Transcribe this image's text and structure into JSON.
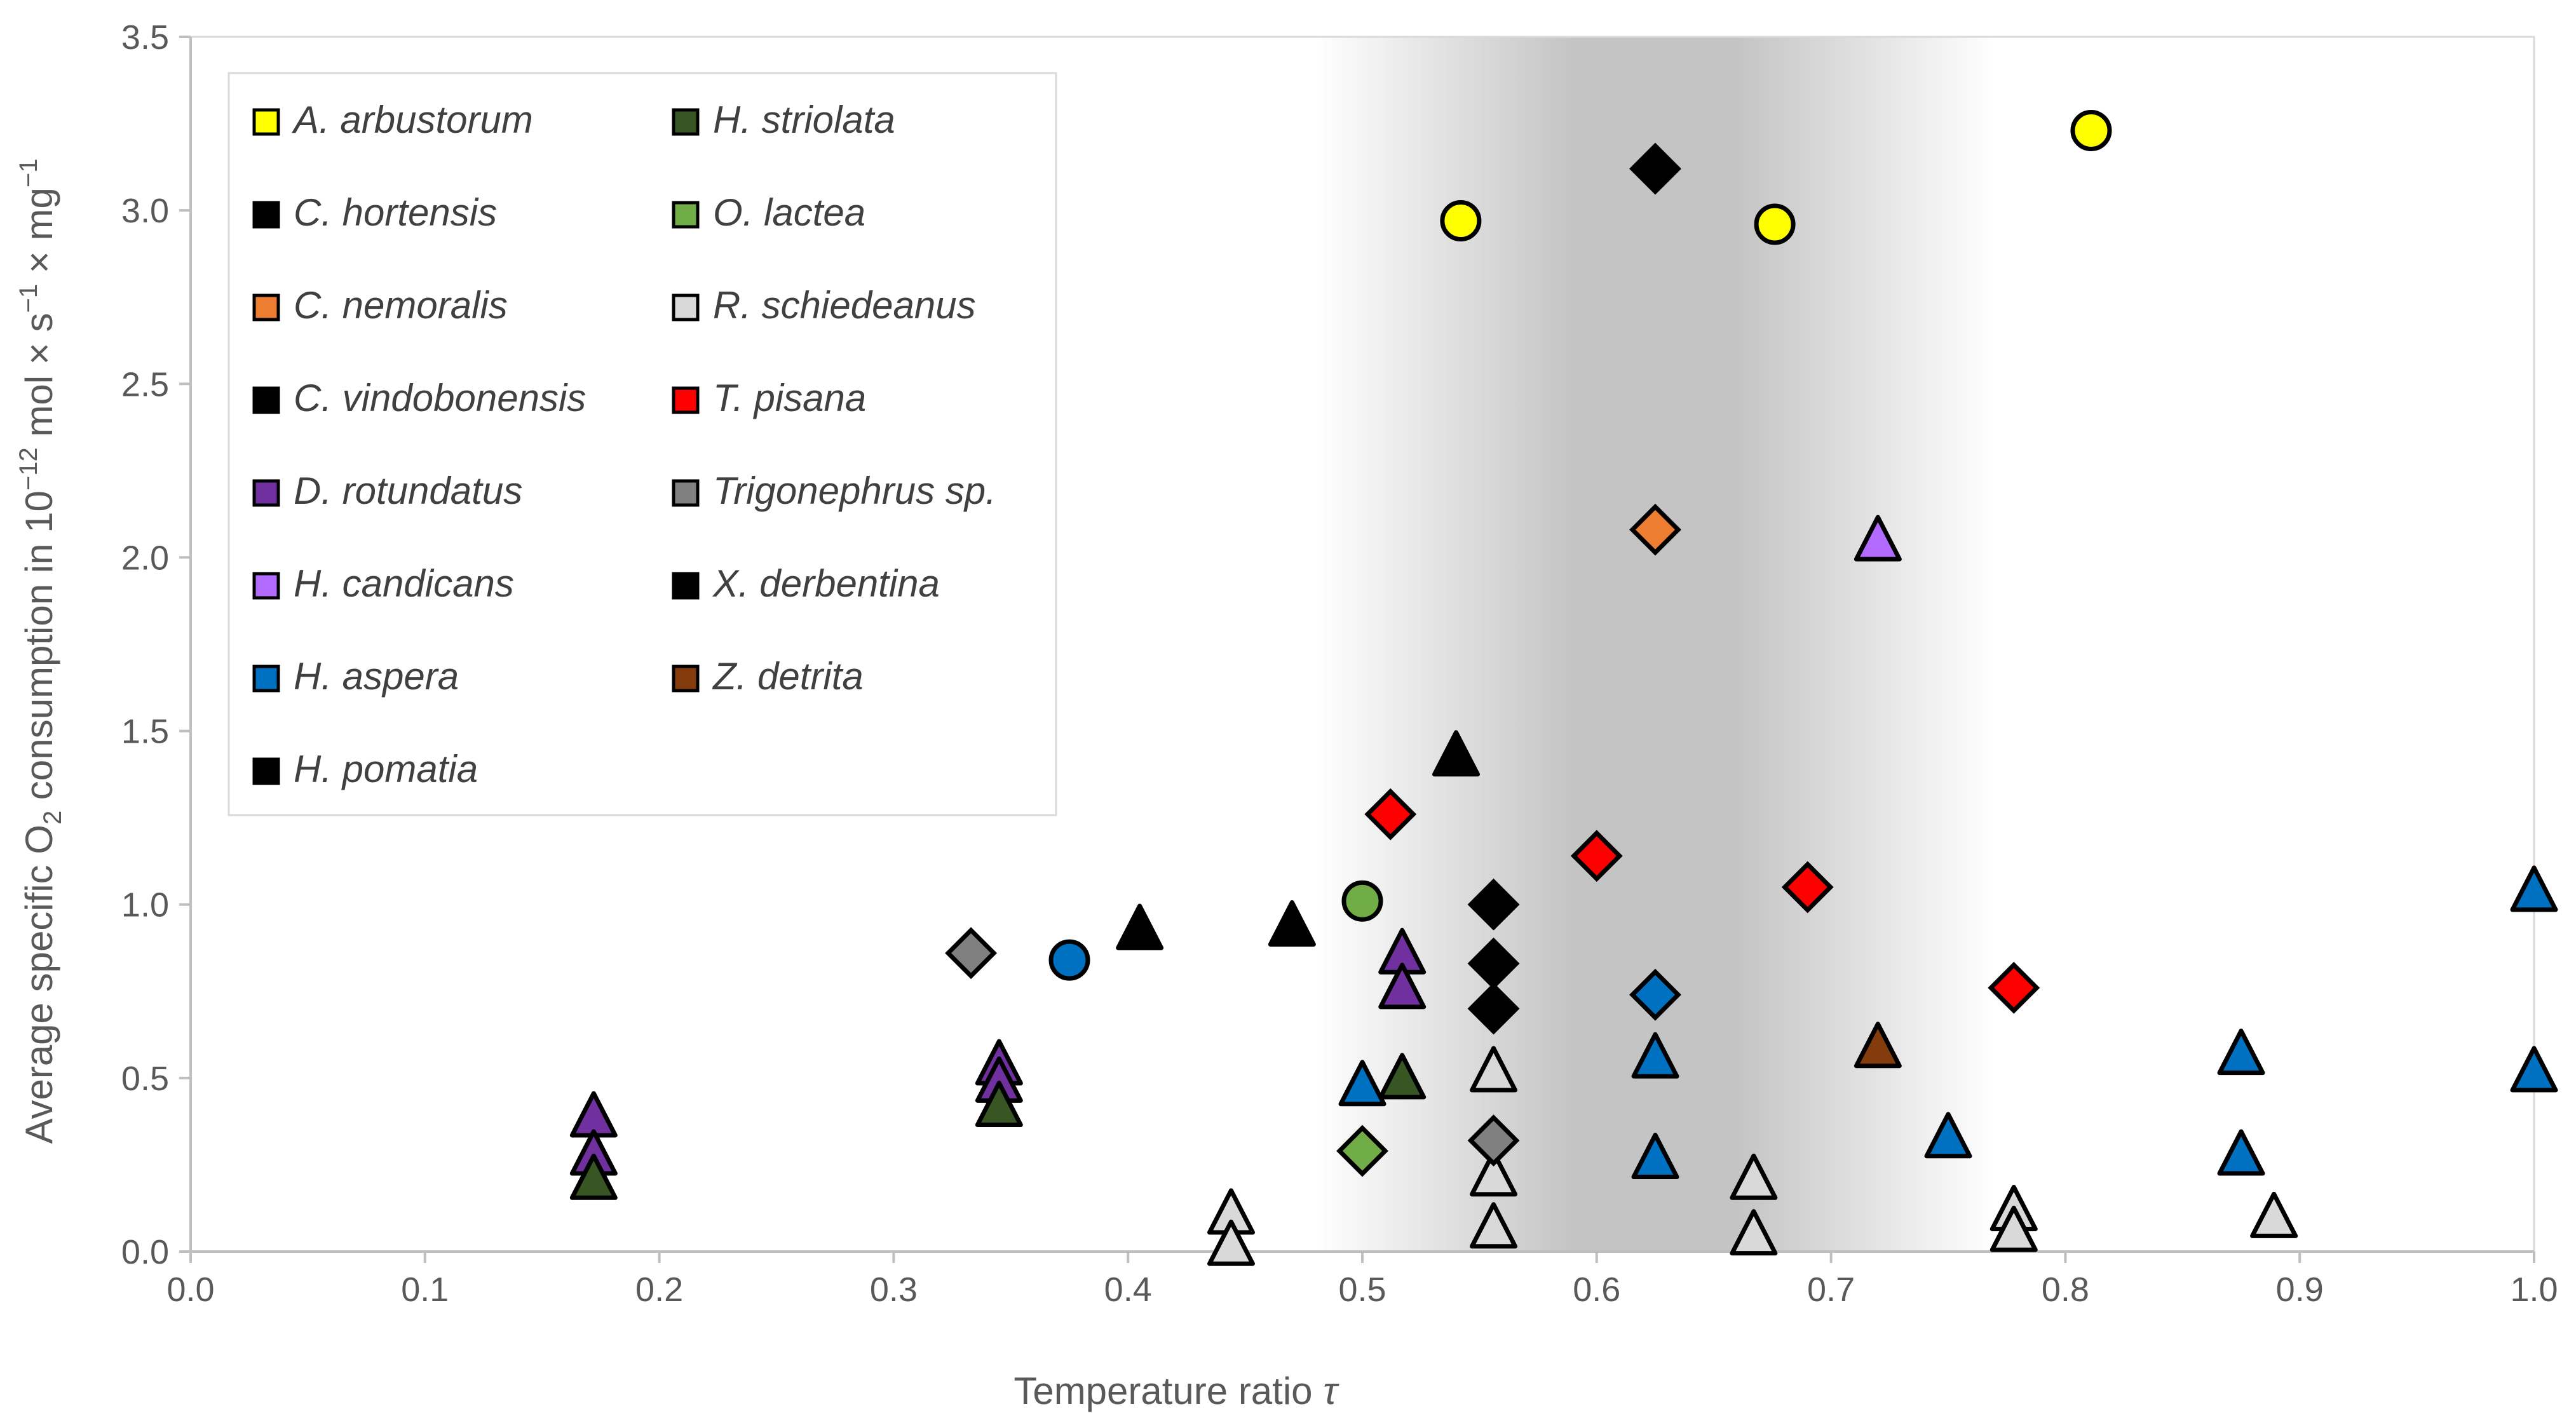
{
  "chart_data": {
    "type": "scatter",
    "title": "",
    "xlabel_text": "Temperature ratio",
    "xlabel_symbol": "τ",
    "ylabel_parts": {
      "a": "Average specific O",
      "sub2": "2",
      "b": " consumption in 10",
      "exp1": "−12",
      "c": " mol × s",
      "exp2": "−1",
      "d": " × mg",
      "exp3": "−1"
    },
    "xlim": [
      0.0,
      1.0
    ],
    "ylim": [
      0.0,
      3.5
    ],
    "xticks": [
      "0.0",
      "0.1",
      "0.2",
      "0.3",
      "0.4",
      "0.5",
      "0.6",
      "0.7",
      "0.8",
      "0.9",
      "1.0"
    ],
    "yticks": [
      "0.0",
      "0.5",
      "1.0",
      "1.5",
      "2.0",
      "2.5",
      "3.0",
      "3.5"
    ],
    "shaded_region": {
      "x_start": 0.48,
      "x_end": 0.77
    },
    "legend": [
      {
        "name": "A. arbustorum",
        "color": "#ffff00",
        "pattern": "solid"
      },
      {
        "name": "C. hortensis",
        "color": "#ffe699",
        "pattern": "hatch"
      },
      {
        "name": "C. nemoralis",
        "color": "#ed7d31",
        "pattern": "solid"
      },
      {
        "name": "C. vindobonensis",
        "color": "#ff7070",
        "pattern": "hatch"
      },
      {
        "name": "D. rotundatus",
        "color": "#7030a0",
        "pattern": "solid"
      },
      {
        "name": "H. candicans",
        "color": "#b36bff",
        "pattern": "solid"
      },
      {
        "name": "H. aspera",
        "color": "#0070c0",
        "pattern": "solid"
      },
      {
        "name": "H. pomatia",
        "color": "#5bc8e8",
        "pattern": "hatch"
      },
      {
        "name": "H. striolata",
        "color": "#375623",
        "pattern": "solid"
      },
      {
        "name": "O. lactea",
        "color": "#70ad47",
        "pattern": "solid"
      },
      {
        "name": "R. schiedeanus",
        "color": "#d9d9d9",
        "pattern": "solid"
      },
      {
        "name": "T. pisana",
        "color": "#ff0000",
        "pattern": "solid"
      },
      {
        "name": "Trigonephrus sp.",
        "color": "#808080",
        "pattern": "solid"
      },
      {
        "name": "X. derbentina",
        "color": "#000000",
        "pattern": "solid"
      },
      {
        "name": "Z. detrita",
        "color": "#843c0c",
        "pattern": "solid"
      }
    ],
    "series": [
      {
        "name": "A. arbustorum",
        "marker": "circle",
        "points": [
          [
            0.542,
            2.97
          ],
          [
            0.676,
            2.96
          ],
          [
            0.811,
            3.23
          ]
        ]
      },
      {
        "name": "C. hortensis",
        "marker": "triangle",
        "points": [
          [
            0.405,
            0.93
          ]
        ]
      },
      {
        "name": "C. nemoralis",
        "marker": "diamond",
        "points": [
          [
            0.625,
            2.08
          ]
        ]
      },
      {
        "name": "C. vindobonensis",
        "marker": "triangle",
        "points": [
          [
            0.54,
            1.43
          ]
        ]
      },
      {
        "name": "D. rotundatus",
        "marker": "triangle",
        "points": [
          [
            0.172,
            0.39
          ],
          [
            0.172,
            0.28
          ],
          [
            0.345,
            0.54
          ],
          [
            0.345,
            0.49
          ],
          [
            0.517,
            0.86
          ],
          [
            0.517,
            0.76
          ]
        ]
      },
      {
        "name": "H. candicans",
        "marker": "triangle",
        "points": [
          [
            0.72,
            2.05
          ]
        ]
      },
      {
        "name": "H. aspera (circle)",
        "marker": "circle",
        "points": [
          [
            0.375,
            0.84
          ]
        ]
      },
      {
        "name": "H. aspera (diamond)",
        "marker": "diamond",
        "points": [
          [
            0.625,
            0.74
          ]
        ]
      },
      {
        "name": "H. aspera",
        "marker": "triangle",
        "points": [
          [
            0.5,
            0.48
          ],
          [
            0.625,
            0.56
          ],
          [
            0.625,
            0.27
          ],
          [
            0.75,
            0.33
          ],
          [
            0.875,
            0.57
          ],
          [
            0.875,
            0.28
          ],
          [
            1.0,
            1.04
          ],
          [
            1.0,
            0.52
          ]
        ]
      },
      {
        "name": "H. pomatia",
        "marker": "triangle",
        "points": [
          [
            0.47,
            0.94
          ]
        ]
      },
      {
        "name": "H. pomatia (diamond)",
        "marker": "diamond",
        "points": [
          [
            0.625,
            3.12
          ]
        ]
      },
      {
        "name": "H. striolata",
        "marker": "triangle",
        "points": [
          [
            0.172,
            0.21
          ],
          [
            0.345,
            0.42
          ],
          [
            0.517,
            0.5
          ]
        ]
      },
      {
        "name": "O. lactea (circle)",
        "marker": "circle",
        "points": [
          [
            0.5,
            1.01
          ]
        ]
      },
      {
        "name": "O. lactea (diamond)",
        "marker": "diamond",
        "points": [
          [
            0.5,
            0.29
          ]
        ]
      },
      {
        "name": "R. schiedeanus",
        "marker": "triangle",
        "points": [
          [
            0.444,
            0.11
          ],
          [
            0.444,
            0.02
          ],
          [
            0.556,
            0.52
          ],
          [
            0.556,
            0.22
          ],
          [
            0.556,
            0.07
          ],
          [
            0.667,
            0.21
          ],
          [
            0.667,
            0.05
          ],
          [
            0.778,
            0.12
          ],
          [
            0.778,
            0.06
          ],
          [
            0.889,
            0.1
          ]
        ]
      },
      {
        "name": "T. pisana",
        "marker": "diamond",
        "points": [
          [
            0.512,
            1.26
          ],
          [
            0.6,
            1.14
          ],
          [
            0.69,
            1.05
          ],
          [
            0.778,
            0.76
          ]
        ]
      },
      {
        "name": "Trigonephrus sp.",
        "marker": "diamond",
        "points": [
          [
            0.333,
            0.86
          ],
          [
            0.556,
            0.32
          ]
        ]
      },
      {
        "name": "X. derbentina",
        "marker": "diamond",
        "points": [
          [
            0.556,
            1.0
          ],
          [
            0.556,
            0.83
          ],
          [
            0.556,
            0.7
          ]
        ]
      },
      {
        "name": "Z. detrita",
        "marker": "triangle",
        "points": [
          [
            0.72,
            0.59
          ]
        ]
      }
    ]
  }
}
